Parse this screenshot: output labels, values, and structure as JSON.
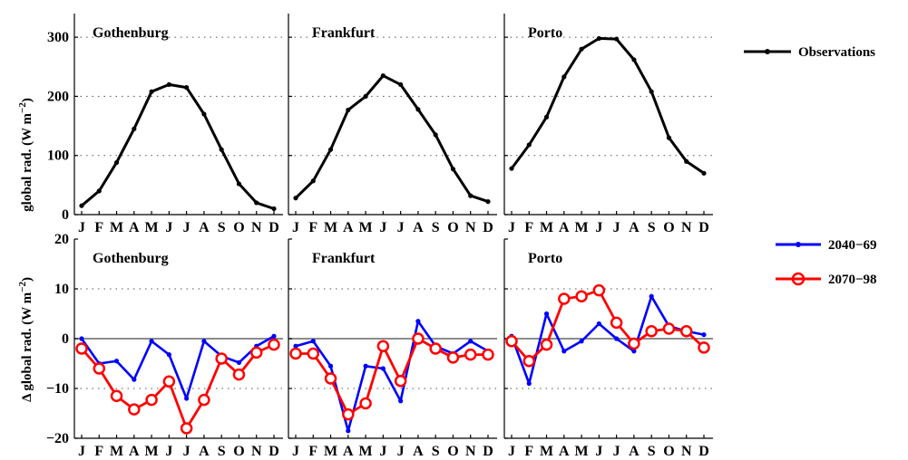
{
  "chart_data": {
    "type": "line",
    "months": [
      "J",
      "F",
      "M",
      "A",
      "M",
      "J",
      "J",
      "A",
      "S",
      "O",
      "N",
      "D"
    ],
    "top_row": {
      "ylabel": "global rad. (W m",
      "ylabel_exp": "−2",
      "ylabel_close": ")",
      "ylim": [
        0,
        340
      ],
      "yticks": [
        "0",
        "100",
        "200",
        "300"
      ],
      "ytick_values": [
        0,
        100,
        200,
        300
      ],
      "grid": "dotted-horizontal",
      "panels": [
        {
          "city": "Gothenburg",
          "series": [
            {
              "name": "Observations",
              "values": [
                15,
                40,
                88,
                145,
                208,
                220,
                215,
                170,
                110,
                52,
                20,
                10
              ]
            }
          ]
        },
        {
          "city": "Frankfurt",
          "series": [
            {
              "name": "Observations",
              "values": [
                28,
                57,
                110,
                177,
                200,
                235,
                220,
                178,
                135,
                77,
                32,
                22
              ]
            }
          ]
        },
        {
          "city": "Porto",
          "series": [
            {
              "name": "Observations",
              "values": [
                78,
                118,
                165,
                233,
                280,
                298,
                297,
                262,
                208,
                130,
                90,
                70
              ]
            }
          ]
        }
      ]
    },
    "bottom_row": {
      "ylabel": "Δ global rad. (W m",
      "ylabel_exp": "−2",
      "ylabel_close": ")",
      "ylim": [
        -20,
        20
      ],
      "yticks": [
        "−20",
        "−10",
        "0",
        "10",
        "20"
      ],
      "ytick_values": [
        -20,
        -10,
        0,
        10,
        20
      ],
      "grid": "dotted-horizontal",
      "panels": [
        {
          "city": "Gothenburg",
          "series": [
            {
              "name": "2040−69",
              "values": [
                0,
                -5,
                -4.5,
                -8.2,
                -0.5,
                -3.2,
                -12,
                -0.5,
                -3.5,
                -4.8,
                -1.5,
                0.5
              ]
            },
            {
              "name": "2070−98",
              "values": [
                -2,
                -6,
                -11.5,
                -14.2,
                -12.3,
                -8.6,
                -18,
                -12.3,
                -4,
                -7.2,
                -2.8,
                -1.2
              ]
            }
          ]
        },
        {
          "city": "Frankfurt",
          "series": [
            {
              "name": "2040−69",
              "values": [
                -1.5,
                -0.5,
                -5.5,
                -18.5,
                -5.5,
                -6,
                -12.5,
                3.5,
                -1.5,
                -3,
                -0.5,
                -2.5
              ]
            },
            {
              "name": "2070−98",
              "values": [
                -3,
                -3,
                -8,
                -15.2,
                -13,
                -1.5,
                -8.5,
                0,
                -2,
                -3.8,
                -3.2,
                -3.2
              ]
            }
          ]
        },
        {
          "city": "Porto",
          "series": [
            {
              "name": "2040−69",
              "values": [
                0.5,
                -9,
                5,
                -2.5,
                -0.5,
                3,
                0,
                -2.5,
                8.5,
                2.5,
                1.5,
                0.8
              ]
            },
            {
              "name": "2070−98",
              "values": [
                -0.5,
                -4.5,
                -1.2,
                8,
                8.5,
                9.7,
                3.2,
                -1,
                1.5,
                2,
                1.5,
                -1.8
              ]
            }
          ]
        }
      ]
    },
    "legend": [
      {
        "name": "Observations",
        "color": "#000000",
        "marker": "dot"
      },
      {
        "name": "2040−69",
        "color": "#0000ff",
        "marker": "dot"
      },
      {
        "name": "2070−98",
        "color": "#ff0000",
        "marker": "circle"
      }
    ]
  }
}
